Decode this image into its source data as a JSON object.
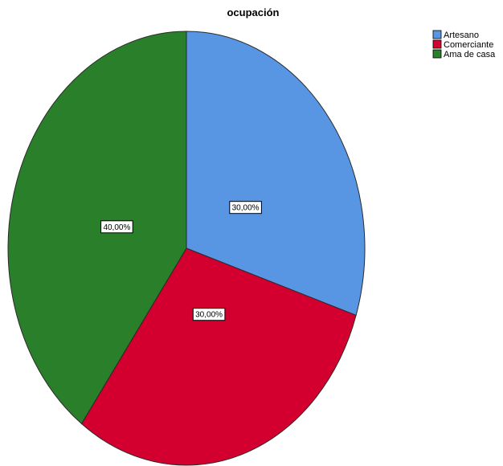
{
  "chart_data": {
    "type": "pie",
    "title": "ocupación",
    "categories": [
      "Artesano",
      "Comerciante",
      "Ama de casa"
    ],
    "values": [
      30,
      30,
      40
    ],
    "data_labels": [
      "30,00%",
      "30,00%",
      "40,00%"
    ],
    "colors": [
      "#5896e4",
      "#d3002f",
      "#2a7f2a"
    ],
    "legend_position": "top-right",
    "start_angle_deg": 0,
    "direction": "clockwise"
  }
}
